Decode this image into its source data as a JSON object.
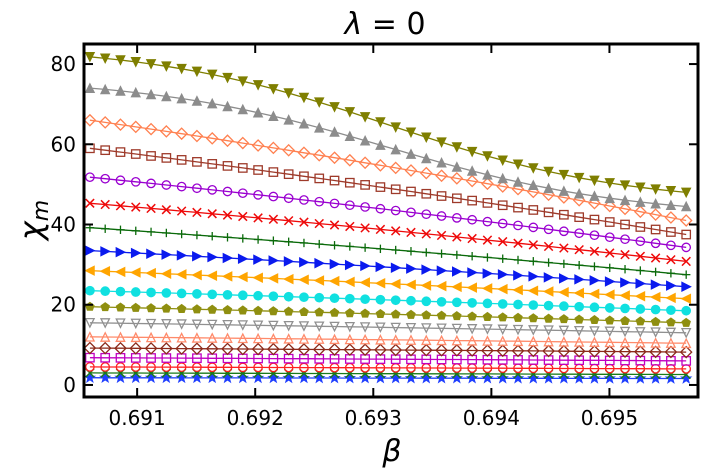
{
  "chart_data": {
    "type": "line",
    "title": "λ = 0",
    "title_symbol": "λ",
    "title_rest": " = 0",
    "xlabel": "β",
    "ylabel_base": "χ",
    "ylabel_sub": "m",
    "xlim": [
      0.69055,
      0.69575
    ],
    "ylim": [
      -3,
      85
    ],
    "xticks": [
      0.691,
      0.692,
      0.693,
      0.694,
      0.695
    ],
    "xtick_labels": [
      "0.691",
      "0.692",
      "0.693",
      "0.694",
      "0.695"
    ],
    "yticks": [
      0,
      20,
      40,
      60,
      80
    ],
    "ytick_labels": [
      "0",
      "20",
      "40",
      "60",
      "80"
    ],
    "x_start": 0.6906,
    "x_end": 0.69565,
    "points_per_series": 40,
    "series": [
      {
        "name": "s1",
        "color": "#1f3fff",
        "marker": "star",
        "start": 1.8,
        "end": 1.6,
        "curve": "linear"
      },
      {
        "name": "s2",
        "color": "#1a7a1a",
        "marker": "x",
        "start": 3.0,
        "end": 2.6,
        "curve": "linear"
      },
      {
        "name": "s3",
        "color": "#ff2020",
        "marker": "circle",
        "start": 4.5,
        "end": 4.0,
        "curve": "linear"
      },
      {
        "name": "s4",
        "color": "#c000c0",
        "marker": "square",
        "start": 6.8,
        "end": 6.0,
        "curve": "linear"
      },
      {
        "name": "s5",
        "color": "#8b2a1a",
        "marker": "diamond",
        "start": 9.2,
        "end": 8.2,
        "curve": "linear"
      },
      {
        "name": "s6",
        "color": "#ff8a6a",
        "marker": "triangle-up",
        "start": 12.0,
        "end": 10.4,
        "curve": "linear"
      },
      {
        "name": "s7",
        "color": "#909090",
        "marker": "triangle-down",
        "start": 15.5,
        "end": 13.0,
        "curve": "linear"
      },
      {
        "name": "s8",
        "color": "#8f8f10",
        "marker": "pentagon",
        "start": 19.5,
        "end": 15.5,
        "curve": "linear"
      },
      {
        "name": "s9",
        "color": "#10e0e0",
        "marker": "circle-filled",
        "start": 23.5,
        "end": 18.5,
        "curve": "linear"
      },
      {
        "name": "s10",
        "color": "#ffa500",
        "marker": "triangle-left",
        "start": 28.5,
        "end": 21.5,
        "curve": "linear"
      },
      {
        "name": "s11",
        "color": "#0a1aee",
        "marker": "triangle-right",
        "start": 33.5,
        "end": 24.5,
        "curve": "linear"
      },
      {
        "name": "s12",
        "color": "#0a6a0a",
        "marker": "plus",
        "start": 39.2,
        "end": 27.5,
        "curve": "linear"
      },
      {
        "name": "s13",
        "color": "#ee0a0a",
        "marker": "x",
        "start": 45.3,
        "end": 30.8,
        "curve": "linear"
      },
      {
        "name": "s14",
        "color": "#9a00d0",
        "marker": "circle",
        "start": 51.8,
        "end": 34.3,
        "curve": "linear"
      },
      {
        "name": "s15",
        "color": "#9e3a2a",
        "marker": "square",
        "start": 59.0,
        "end": 37.5,
        "curve": "linear"
      },
      {
        "name": "s16",
        "color": "#ff8050",
        "marker": "diamond",
        "start": 66.0,
        "end": 41.0,
        "curve": "linear"
      },
      {
        "name": "s17",
        "color": "#8c8c8c",
        "marker": "triangle-up-filled",
        "start": 74.0,
        "end": 44.5,
        "curve": "sigmoid"
      },
      {
        "name": "s18",
        "color": "#7f7f00",
        "marker": "triangle-down-filled",
        "start": 81.8,
        "end": 48.0,
        "curve": "sigmoid"
      }
    ]
  }
}
